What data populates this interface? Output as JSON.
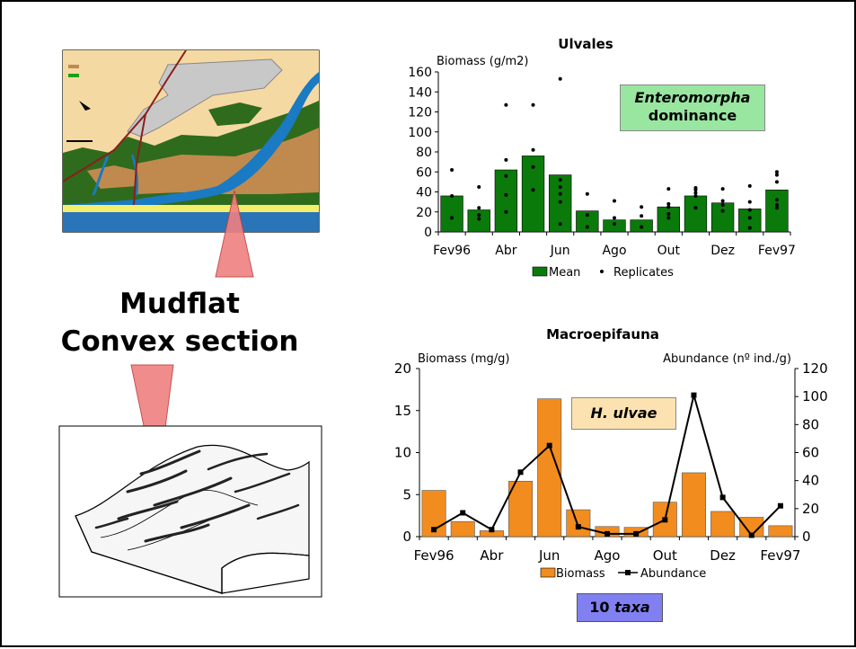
{
  "labels": {
    "mudflat_line1": "Mudflat",
    "mudflat_line2": "Convex section",
    "enteromorpha_italic": "Enteromorpha",
    "enteromorpha_rest": "dominance",
    "hulvae": "H. ulvae",
    "taxa_number": "10 ",
    "taxa_italic": "taxa"
  },
  "colors": {
    "bar_green": "#0a7a0a",
    "bar_orange": "#f28c1e",
    "enteromorpha_box": "#99e6a0",
    "hulvae_box": "#fbe2b0",
    "taxa_box": "#8080f0",
    "pointer": "#f08080"
  },
  "chart_data": [
    {
      "type": "bar",
      "title": "Ulvales",
      "ylabel": "Biomass (g/m2)",
      "ylim": [
        0,
        160
      ],
      "yticks": [
        0,
        20,
        40,
        60,
        80,
        100,
        120,
        140,
        160
      ],
      "categories": [
        "Fev96",
        "",
        "Abr",
        "",
        "Jun",
        "",
        "Ago",
        "",
        "Out",
        "",
        "Dez",
        "",
        "Fev97"
      ],
      "series": [
        {
          "name": "Mean",
          "values": [
            36,
            22,
            62,
            76,
            57,
            21,
            12,
            12,
            25,
            36,
            29,
            23,
            42
          ]
        },
        {
          "name": "Replicates",
          "type": "scatter",
          "values": [
            [
              62,
              36,
              14
            ],
            [
              45,
              24,
              17,
              13
            ],
            [
              127,
              72,
              56,
              37,
              20
            ],
            [
              127,
              82,
              65,
              42
            ],
            [
              153,
              52,
              45,
              38,
              30,
              8
            ],
            [
              38,
              17,
              5
            ],
            [
              31,
              14,
              8
            ],
            [
              25,
              16,
              5
            ],
            [
              43,
              28,
              25,
              18,
              14
            ],
            [
              44,
              42,
              39,
              36,
              24
            ],
            [
              43,
              31,
              27,
              21
            ],
            [
              46,
              30,
              22,
              14,
              4
            ],
            [
              60,
              57,
              50,
              32,
              27,
              24
            ]
          ]
        }
      ],
      "legend": "bottom"
    },
    {
      "type": "bar",
      "title": "Macroepifauna",
      "ylabel": "Biomass (mg/g)",
      "y2label": "Abundance (nº ind./g)",
      "ylim": [
        0,
        20
      ],
      "yticks": [
        0,
        5,
        10,
        15,
        20
      ],
      "y2lim": [
        0,
        120
      ],
      "y2ticks": [
        0,
        20,
        40,
        60,
        80,
        100,
        120
      ],
      "categories": [
        "Fev96",
        "",
        "Abr",
        "",
        "Jun",
        "",
        "Ago",
        "",
        "Out",
        "",
        "Dez",
        "",
        "Fev97"
      ],
      "series": [
        {
          "name": "Biomass",
          "type": "bar",
          "values": [
            5.5,
            1.8,
            0.7,
            6.6,
            16.4,
            3.2,
            1.2,
            1.1,
            4.1,
            7.6,
            3.0,
            2.3,
            1.3
          ]
        },
        {
          "name": "Abundance",
          "type": "line",
          "axis": "y2",
          "values": [
            5,
            17,
            5,
            46,
            65,
            7,
            2,
            2,
            12,
            101,
            28,
            1,
            22
          ]
        }
      ],
      "legend": "bottom"
    }
  ]
}
